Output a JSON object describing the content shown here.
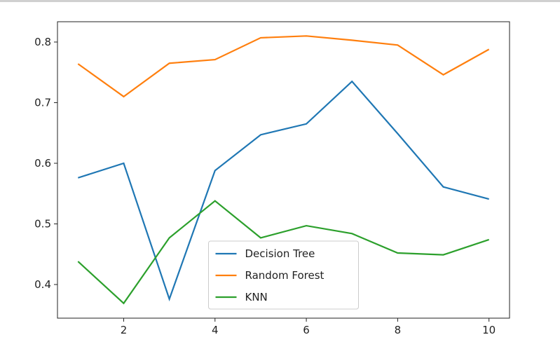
{
  "chart_data": {
    "type": "line",
    "x": [
      1,
      2,
      3,
      4,
      5,
      6,
      7,
      8,
      9,
      10
    ],
    "series": [
      {
        "name": "Decision Tree",
        "color": "#1f77b4",
        "values": [
          0.576,
          0.6,
          0.376,
          0.588,
          0.647,
          0.665,
          0.735,
          0.649,
          0.561,
          0.541
        ]
      },
      {
        "name": "Random Forest",
        "color": "#ff7f0e",
        "values": [
          0.764,
          0.71,
          0.765,
          0.771,
          0.807,
          0.81,
          0.803,
          0.795,
          0.746,
          0.788
        ]
      },
      {
        "name": "KNN",
        "color": "#2ca02c",
        "values": [
          0.438,
          0.369,
          0.477,
          0.538,
          0.477,
          0.497,
          0.484,
          0.452,
          0.449,
          0.474
        ]
      }
    ],
    "xlim": [
      0.55,
      10.45
    ],
    "xticks": [
      2,
      4,
      6,
      8,
      10
    ],
    "ylim": [
      0.3445,
      0.8335
    ],
    "yticks": [
      0.4,
      0.5,
      0.6,
      0.7,
      0.8
    ],
    "grid": false,
    "legend": "lower center"
  }
}
